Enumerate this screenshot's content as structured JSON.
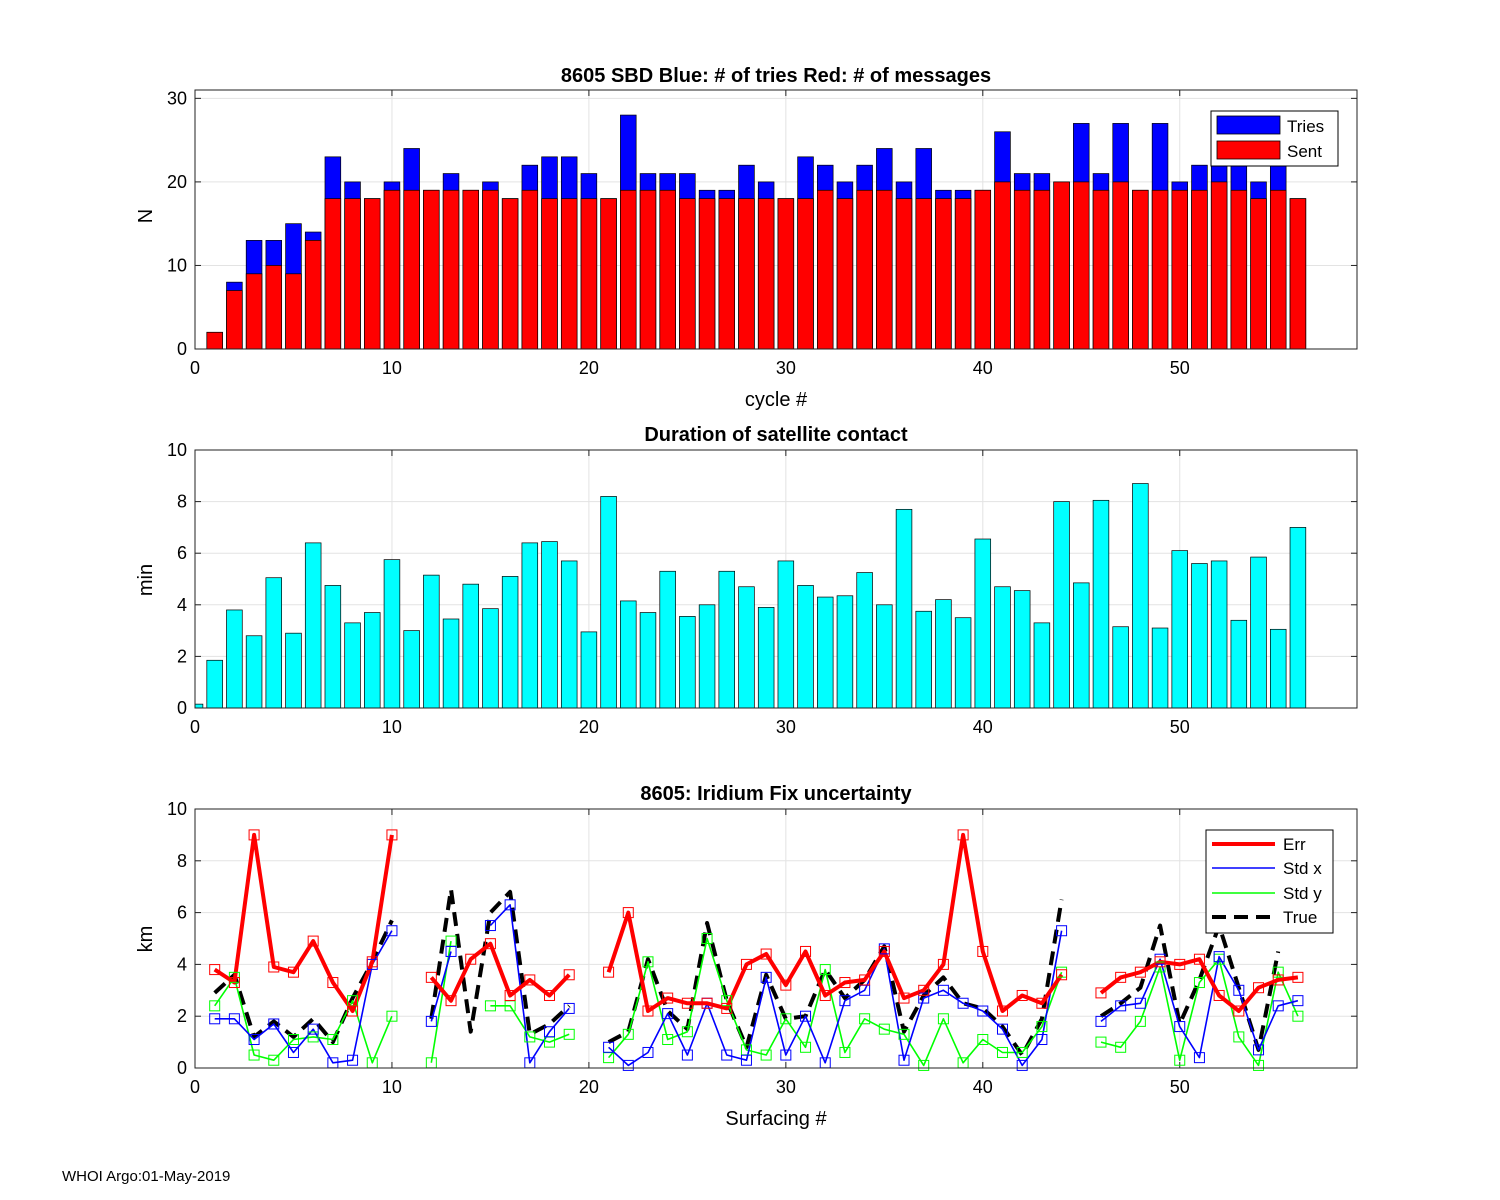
{
  "footer": "WHOI Argo:01-May-2019",
  "colors": {
    "tries": "#0000ff",
    "sent": "#ff0000",
    "duration": "#00ffff",
    "err": "#ff0000",
    "stdx": "#0000ff",
    "stdy": "#00ff00",
    "true": "#000000"
  },
  "chart_data": [
    {
      "type": "bar",
      "title": "8605 SBD  Blue: # of tries   Red: # of messages",
      "xlabel": "cycle #",
      "ylabel": "N",
      "xlim": [
        0,
        59
      ],
      "ylim": [
        0,
        31
      ],
      "xticks": [
        0,
        10,
        20,
        30,
        40,
        50
      ],
      "yticks": [
        0,
        10,
        20,
        30
      ],
      "grid": true,
      "legend_position": "top-right",
      "x": [
        1,
        2,
        3,
        4,
        5,
        6,
        7,
        8,
        9,
        10,
        11,
        12,
        13,
        14,
        15,
        16,
        17,
        18,
        19,
        20,
        21,
        22,
        23,
        24,
        25,
        26,
        27,
        28,
        29,
        30,
        31,
        32,
        33,
        34,
        35,
        36,
        37,
        38,
        39,
        40,
        41,
        42,
        43,
        44,
        45,
        46,
        47,
        48,
        49,
        50,
        51,
        52,
        53,
        54,
        55,
        56
      ],
      "series": [
        {
          "name": "Tries",
          "values": [
            2,
            8,
            13,
            13,
            15,
            14,
            23,
            20,
            18,
            20,
            24,
            19,
            21,
            19,
            20,
            18,
            22,
            23,
            23,
            21,
            18,
            28,
            21,
            21,
            21,
            19,
            19,
            22,
            20,
            18,
            23,
            22,
            20,
            22,
            24,
            20,
            24,
            19,
            19,
            19,
            26,
            21,
            21,
            20,
            27,
            21,
            27,
            19,
            27,
            20,
            22,
            22,
            22,
            20,
            22,
            18
          ]
        },
        {
          "name": "Sent",
          "values": [
            2,
            7,
            9,
            10,
            9,
            13,
            18,
            18,
            18,
            19,
            19,
            19,
            19,
            19,
            19,
            18,
            19,
            18,
            18,
            18,
            18,
            19,
            19,
            19,
            18,
            18,
            18,
            18,
            18,
            18,
            18,
            19,
            18,
            19,
            19,
            18,
            18,
            18,
            18,
            19,
            20,
            19,
            19,
            20,
            20,
            19,
            20,
            19,
            19,
            19,
            19,
            20,
            19,
            18,
            19,
            18
          ]
        }
      ]
    },
    {
      "type": "bar",
      "title": "Duration of satellite contact",
      "xlabel": "",
      "ylabel": "min",
      "xlim": [
        0,
        59
      ],
      "ylim": [
        0,
        10
      ],
      "xticks": [
        0,
        10,
        20,
        30,
        40,
        50
      ],
      "yticks": [
        0,
        2,
        4,
        6,
        8,
        10
      ],
      "grid": true,
      "x": [
        0,
        1,
        2,
        3,
        4,
        5,
        6,
        7,
        8,
        9,
        10,
        11,
        12,
        13,
        14,
        15,
        16,
        17,
        18,
        19,
        20,
        21,
        22,
        23,
        24,
        25,
        26,
        27,
        28,
        29,
        30,
        31,
        32,
        33,
        34,
        35,
        36,
        37,
        38,
        39,
        40,
        41,
        42,
        43,
        44,
        45,
        46,
        47,
        48,
        49,
        50,
        51,
        52,
        53,
        54,
        55,
        56
      ],
      "values": [
        0.15,
        1.85,
        3.8,
        2.8,
        5.05,
        2.9,
        6.4,
        4.75,
        3.3,
        3.7,
        5.75,
        3.0,
        5.15,
        3.45,
        4.8,
        3.85,
        5.1,
        6.4,
        6.45,
        5.7,
        2.95,
        8.2,
        4.15,
        3.7,
        5.3,
        3.55,
        4.0,
        5.3,
        4.7,
        3.9,
        5.7,
        4.75,
        4.3,
        4.35,
        5.25,
        4.0,
        7.7,
        3.75,
        4.2,
        3.5,
        6.55,
        4.7,
        4.55,
        3.3,
        8.0,
        4.85,
        8.05,
        3.15,
        8.7,
        3.1,
        6.1,
        5.6,
        5.7,
        3.4,
        5.85,
        3.05,
        7.0
      ]
    },
    {
      "type": "line",
      "title": "8605: Iridium Fix uncertainty",
      "xlabel": "Surfacing #",
      "ylabel": "km",
      "xlim": [
        0,
        59
      ],
      "ylim": [
        0,
        10
      ],
      "xticks": [
        0,
        10,
        20,
        30,
        40,
        50
      ],
      "yticks": [
        0,
        2,
        4,
        6,
        8,
        10
      ],
      "grid": true,
      "legend_position": "top-right",
      "x": [
        1,
        2,
        3,
        4,
        5,
        6,
        7,
        8,
        9,
        10,
        11,
        12,
        13,
        14,
        15,
        16,
        17,
        18,
        19,
        20,
        21,
        22,
        23,
        24,
        25,
        26,
        27,
        28,
        29,
        30,
        31,
        32,
        33,
        34,
        35,
        36,
        37,
        38,
        39,
        40,
        41,
        42,
        43,
        44,
        45,
        46,
        47,
        48,
        49,
        50,
        51,
        52,
        53,
        54,
        55,
        56
      ],
      "series": [
        {
          "name": "Err",
          "values": [
            3.8,
            3.3,
            9.0,
            3.9,
            3.7,
            4.9,
            3.3,
            2.2,
            4.1,
            9.0,
            null,
            3.5,
            2.6,
            4.2,
            4.8,
            2.8,
            3.4,
            2.8,
            3.6,
            null,
            3.7,
            6.0,
            2.2,
            2.7,
            2.5,
            2.5,
            2.3,
            4.0,
            4.4,
            3.2,
            4.5,
            2.8,
            3.3,
            3.4,
            4.5,
            2.7,
            3.0,
            4.0,
            9.0,
            4.5,
            2.2,
            2.8,
            2.5,
            3.6,
            null,
            2.9,
            3.5,
            3.7,
            4.1,
            4.0,
            4.2,
            2.8,
            2.2,
            3.1,
            3.4,
            3.5
          ]
        },
        {
          "name": "Std x",
          "values": [
            1.9,
            1.9,
            1.1,
            1.7,
            0.6,
            1.5,
            0.2,
            0.3,
            4.0,
            5.3,
            null,
            1.8,
            4.5,
            null,
            5.5,
            6.3,
            0.2,
            1.4,
            2.3,
            null,
            0.8,
            0.1,
            0.6,
            2.1,
            0.5,
            2.5,
            0.5,
            0.3,
            3.5,
            0.5,
            2.0,
            0.2,
            2.6,
            3.0,
            4.6,
            0.3,
            2.7,
            3.0,
            2.5,
            2.2,
            1.5,
            0.1,
            1.1,
            5.3,
            null,
            1.8,
            2.4,
            2.5,
            4.2,
            1.6,
            0.4,
            4.3,
            3.0,
            0.7,
            2.4,
            2.6
          ]
        },
        {
          "name": "Std y",
          "values": [
            2.4,
            3.5,
            0.5,
            0.3,
            1.1,
            1.2,
            1.1,
            2.6,
            0.2,
            2.0,
            null,
            0.2,
            4.9,
            null,
            2.4,
            2.4,
            1.2,
            1.0,
            1.3,
            null,
            0.4,
            1.3,
            4.1,
            1.1,
            1.4,
            5.0,
            2.6,
            0.7,
            0.5,
            1.9,
            0.8,
            3.8,
            0.6,
            1.9,
            1.5,
            1.3,
            0.1,
            1.9,
            0.2,
            1.1,
            0.6,
            0.6,
            1.6,
            3.7,
            null,
            1.0,
            0.8,
            1.8,
            3.9,
            0.3,
            3.3,
            4.2,
            1.2,
            0.1,
            3.7,
            2.0
          ]
        },
        {
          "name": "True",
          "values": [
            2.9,
            3.6,
            1.2,
            1.8,
            1.2,
            1.9,
            1.0,
            2.7,
            4.1,
            5.7,
            null,
            1.9,
            6.9,
            1.4,
            6.0,
            6.8,
            1.3,
            1.7,
            2.4,
            null,
            1.0,
            1.4,
            4.2,
            2.2,
            1.5,
            5.6,
            2.6,
            0.8,
            3.6,
            1.9,
            2.0,
            3.8,
            2.7,
            3.4,
            4.7,
            1.4,
            2.8,
            3.5,
            2.5,
            2.3,
            1.6,
            0.5,
            1.9,
            6.5,
            null,
            2.0,
            2.5,
            3.1,
            5.5,
            1.7,
            3.4,
            5.5,
            3.1,
            0.7,
            4.5,
            null
          ]
        }
      ]
    }
  ]
}
